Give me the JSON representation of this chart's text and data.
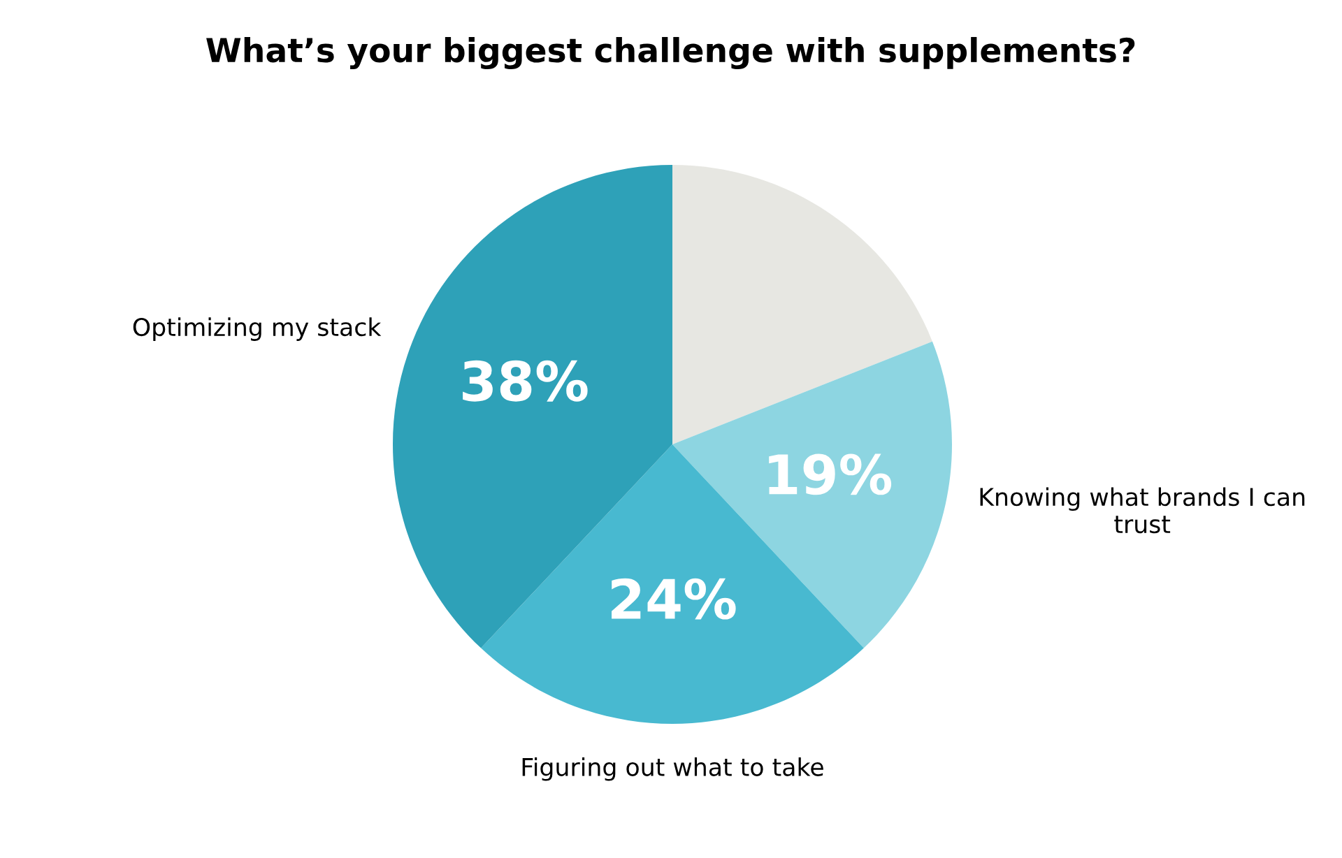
{
  "chart_data": {
    "type": "pie",
    "title": "What’s your biggest challenge with supplements?",
    "categories": [
      null,
      "Knowing what brands I can trust",
      "Figuring out what to take",
      "Optimizing my stack"
    ],
    "values": [
      19,
      19,
      24,
      38
    ],
    "value_labels": [
      null,
      "19%",
      "24%",
      "38%"
    ],
    "colors": [
      "#e7e7e2",
      "#8dd5e1",
      "#48b9d0",
      "#2ea1b8"
    ],
    "legend": false
  }
}
